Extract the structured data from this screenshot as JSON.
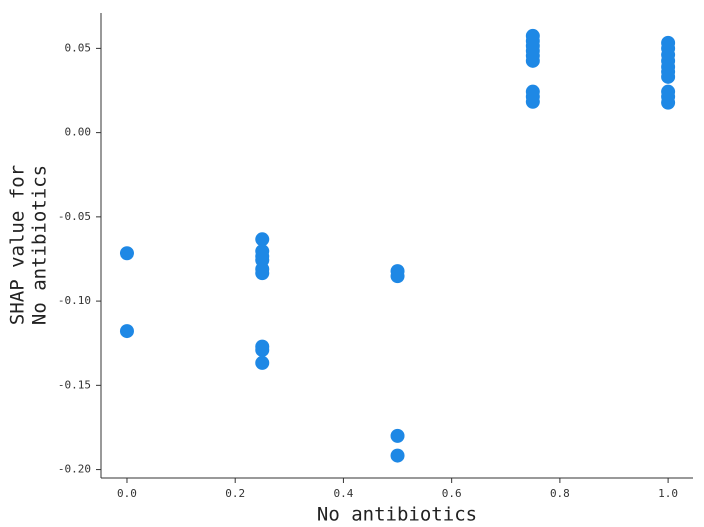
{
  "chart_data": {
    "type": "scatter",
    "xlabel": "No antibiotics",
    "ylabel": [
      "SHAP value for",
      "No antibiotics"
    ],
    "color": "#1e88e5",
    "x": [
      0,
      0,
      0.25,
      0.25,
      0.25,
      0.25,
      0.25,
      0.25,
      0.25,
      0.25,
      0.25,
      0.5,
      0.5,
      0.5,
      0.5,
      0.75,
      0.75,
      0.75,
      0.75,
      0.75,
      0.75,
      0.75,
      0.75,
      0.75,
      1,
      1,
      1,
      1,
      1,
      1,
      1,
      1,
      1,
      1
    ],
    "y": [
      -0.0716,
      -0.1178,
      -0.0633,
      -0.0704,
      -0.0734,
      -0.0757,
      -0.081,
      -0.0834,
      -0.127,
      -0.129,
      -0.1367,
      -0.0822,
      -0.0852,
      -0.18,
      -0.1917,
      0.0574,
      0.0544,
      0.0515,
      0.0485,
      0.0456,
      0.0426,
      0.0243,
      0.0213,
      0.0183,
      0.0533,
      0.05,
      0.0462,
      0.0426,
      0.039,
      0.0361,
      0.0331,
      0.0243,
      0.0213,
      0.0178
    ],
    "xlim": [
      -0.048,
      1.046
    ],
    "ylim": [
      -0.205,
      0.071
    ],
    "xticks": [
      {
        "value": 0,
        "label": "0.0"
      },
      0.2,
      0.4,
      0.6,
      0.8,
      {
        "value": 1,
        "label": "1.0"
      }
    ],
    "yticks": [
      {
        "value": -0.2,
        "label": "-0.20"
      },
      -0.15,
      {
        "value": -0.1,
        "label": "-0.10"
      },
      -0.05,
      {
        "value": 0,
        "label": "0.00"
      },
      0.05
    ]
  }
}
